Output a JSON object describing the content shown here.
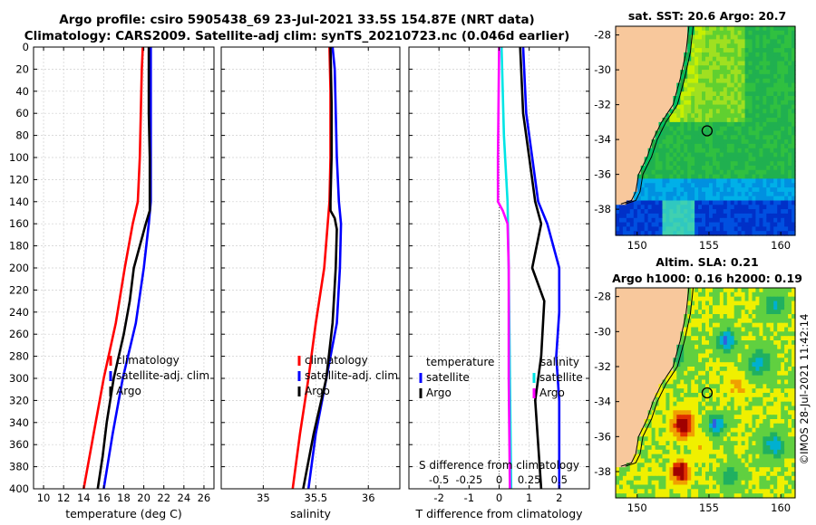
{
  "header": {
    "title_line1": "Argo profile: csiro 5905438_69 23-Jul-2021 33.5S 154.87E (NRT data)",
    "title_line2": "Climatology: CARS2009. Satellite-adj clim: synTS_20210723.nc (0.046d earlier)",
    "map1_title": "sat. SST: 20.6 Argo: 20.7",
    "map2_title_line1": "Altim. SLA: 0.21",
    "map2_title_line2": "Argo h1000: 0.16 h2000: 0.19",
    "stamp": "©IMOS 28-Jul-2021 11:42:14"
  },
  "colors": {
    "climatology": "#ff0000",
    "satellite": "#0000ff",
    "argo": "#000000",
    "sal_sat": "#00e5e5",
    "sal_argo": "#ff00ff",
    "land": "#f8c89c"
  },
  "chart_data": [
    {
      "type": "line",
      "name": "temperature",
      "xlabel": "temperature (deg C)",
      "xlim": [
        9,
        27
      ],
      "ylim": [
        0,
        400
      ],
      "xticks": [
        10,
        12,
        14,
        16,
        18,
        20,
        22,
        24,
        26
      ],
      "yticks": [
        0,
        20,
        40,
        60,
        80,
        100,
        120,
        140,
        160,
        180,
        200,
        220,
        240,
        260,
        280,
        300,
        320,
        340,
        360,
        380,
        400
      ],
      "legend": [
        "climatology",
        "satellite-adj. clim",
        "Argo"
      ],
      "series": [
        {
          "name": "climatology",
          "color": "#ff0000",
          "depth": [
            0,
            20,
            60,
            100,
            140,
            160,
            200,
            250,
            300,
            350,
            400
          ],
          "values": [
            19.9,
            19.8,
            19.7,
            19.6,
            19.4,
            18.9,
            18.1,
            17.2,
            16.0,
            15.0,
            14.0
          ]
        },
        {
          "name": "satellite-adj. clim",
          "color": "#0000ff",
          "depth": [
            0,
            20,
            60,
            100,
            140,
            160,
            200,
            250,
            300,
            350,
            400
          ],
          "values": [
            20.7,
            20.7,
            20.7,
            20.7,
            20.7,
            20.5,
            20.0,
            19.2,
            17.9,
            16.9,
            16.0
          ]
        },
        {
          "name": "Argo",
          "color": "#000000",
          "depth": [
            0,
            20,
            60,
            100,
            140,
            148,
            160,
            200,
            230,
            260,
            300,
            340,
            370,
            400
          ],
          "values": [
            20.5,
            20.5,
            20.5,
            20.6,
            20.6,
            20.6,
            20.2,
            19.0,
            18.6,
            18.0,
            17.0,
            16.3,
            15.9,
            15.4
          ]
        }
      ]
    },
    {
      "type": "line",
      "name": "salinity",
      "xlabel": "salinity",
      "xlim": [
        34.6,
        36.3
      ],
      "ylim": [
        0,
        400
      ],
      "xticks": [
        35,
        35.5,
        36
      ],
      "xtick_labels": [
        "35",
        "35.5",
        "36"
      ],
      "legend": [
        "climatology",
        "satellite-adj. clim",
        "Argo"
      ],
      "series": [
        {
          "name": "climatology",
          "color": "#ff0000",
          "depth": [
            0,
            40,
            100,
            140,
            200,
            250,
            300,
            350,
            400
          ],
          "values": [
            35.63,
            35.64,
            35.64,
            35.63,
            35.58,
            35.5,
            35.43,
            35.35,
            35.28
          ]
        },
        {
          "name": "satellite-adj. clim",
          "color": "#0000ff",
          "depth": [
            0,
            20,
            100,
            140,
            160,
            200,
            250,
            300,
            350,
            400
          ],
          "values": [
            35.66,
            35.68,
            35.7,
            35.72,
            35.74,
            35.73,
            35.7,
            35.6,
            35.5,
            35.43
          ]
        },
        {
          "name": "Argo",
          "color": "#000000",
          "depth": [
            0,
            50,
            100,
            140,
            148,
            155,
            165,
            200,
            250,
            300,
            350,
            400
          ],
          "values": [
            35.64,
            35.65,
            35.65,
            35.64,
            35.64,
            35.68,
            35.7,
            35.69,
            35.66,
            35.6,
            35.48,
            35.38
          ]
        }
      ]
    },
    {
      "type": "line",
      "name": "difference",
      "xlabel": "T difference from climatology",
      "xlabel_top": "S difference from climatology",
      "xlim": [
        -3,
        3
      ],
      "ylim": [
        0,
        400
      ],
      "xticks": [
        -2,
        -1,
        0,
        1,
        2
      ],
      "top_ticks": [
        -0.5,
        -0.25,
        0,
        0.25,
        0.5
      ],
      "top_tick_labels": [
        "-0.5",
        "-0.25",
        "0",
        "0.25",
        "0.5"
      ],
      "legend_temperature_title": "temperature",
      "legend_salinity_title": "salinity",
      "legend": [
        "satellite",
        "Argo"
      ],
      "series": [
        {
          "name": "T satellite",
          "color": "#0000ff",
          "depth": [
            0,
            60,
            140,
            160,
            200,
            240,
            280,
            320,
            360,
            400
          ],
          "values": [
            0.8,
            0.9,
            1.3,
            1.6,
            2.0,
            2.0,
            1.9,
            2.0,
            2.0,
            2.0
          ]
        },
        {
          "name": "T Argo",
          "color": "#000000",
          "depth": [
            0,
            60,
            100,
            140,
            160,
            200,
            230,
            280,
            320,
            360,
            400
          ],
          "values": [
            0.7,
            0.8,
            1.0,
            1.2,
            1.4,
            1.1,
            1.5,
            1.4,
            1.2,
            1.3,
            1.4
          ]
        },
        {
          "name": "S satellite",
          "color": "#00e5e5",
          "depth": [
            0,
            80,
            140,
            200,
            300,
            400
          ],
          "values": [
            0.02,
            0.04,
            0.07,
            0.08,
            0.09,
            0.1
          ]
        },
        {
          "name": "S Argo",
          "color": "#ff00ff",
          "depth": [
            0,
            100,
            140,
            148,
            160,
            200,
            300,
            400
          ],
          "values": [
            0.0,
            -0.01,
            -0.01,
            0.03,
            0.07,
            0.08,
            0.08,
            0.09
          ]
        }
      ]
    },
    {
      "type": "heatmap",
      "name": "sat. SST map",
      "xlim": [
        148.5,
        161
      ],
      "ylim": [
        -39.5,
        -27.5
      ],
      "xticks": [
        150,
        155,
        160
      ],
      "yticks": [
        -28,
        -30,
        -32,
        -34,
        -36,
        -38
      ],
      "marker": {
        "lon": 154.87,
        "lat": -33.5
      }
    },
    {
      "type": "heatmap",
      "name": "Altim. SLA map",
      "xlim": [
        148.5,
        161
      ],
      "ylim": [
        -39.5,
        -27.5
      ],
      "xticks": [
        150,
        155,
        160
      ],
      "yticks": [
        -28,
        -30,
        -32,
        -34,
        -36,
        -38
      ],
      "marker": {
        "lon": 154.87,
        "lat": -33.5
      }
    }
  ]
}
